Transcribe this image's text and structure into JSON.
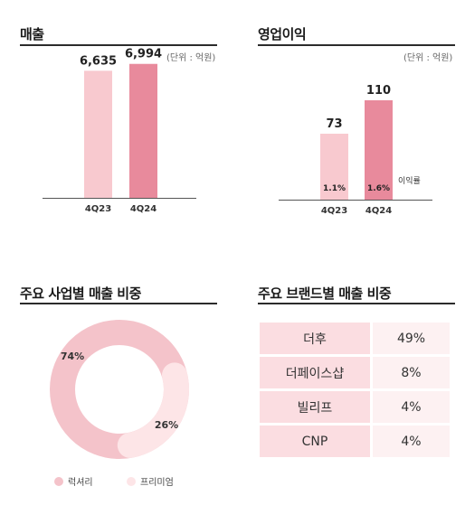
{
  "sections": {
    "sales": {
      "title": "매출",
      "unit": "(단위 : 억원)"
    },
    "op_profit": {
      "title": "영업이익",
      "unit": "(단위 : 억원)",
      "margin_label": "이익률"
    },
    "business_mix": {
      "title": "주요 사업별 매출 비중"
    },
    "brand_mix": {
      "title": "주요 브랜드별 매출 비중"
    }
  },
  "colors": {
    "light_pink": "#f8c9cf",
    "dark_pink": "#e88a9c",
    "donut_main": "#f4c3ca",
    "donut_secondary": "#fde5e7"
  },
  "chart_data": [
    {
      "type": "bar",
      "title": "매출",
      "categories": [
        "4Q23",
        "4Q24"
      ],
      "values": [
        6635,
        6994
      ],
      "value_labels": [
        "6,635",
        "6,994"
      ],
      "ylim": [
        0,
        7500
      ]
    },
    {
      "type": "bar",
      "title": "영업이익",
      "categories": [
        "4Q23",
        "4Q24"
      ],
      "values": [
        73,
        110
      ],
      "value_labels": [
        "73",
        "110"
      ],
      "margins": [
        "1.1%",
        "1.6%"
      ],
      "ylim": [
        0,
        150
      ]
    },
    {
      "type": "pie",
      "title": "주요 사업별 매출 비중",
      "slices": [
        {
          "name": "럭셔리",
          "value": 74,
          "label": "74%"
        },
        {
          "name": "프리미엄",
          "value": 26,
          "label": "26%"
        }
      ]
    },
    {
      "type": "table",
      "title": "주요 브랜드별 매출 비중",
      "rows": [
        {
          "brand": "더후",
          "share": "49%"
        },
        {
          "brand": "더페이스샵",
          "share": "8%"
        },
        {
          "brand": "빌리프",
          "share": "4%"
        },
        {
          "brand": "CNP",
          "share": "4%"
        }
      ]
    }
  ]
}
